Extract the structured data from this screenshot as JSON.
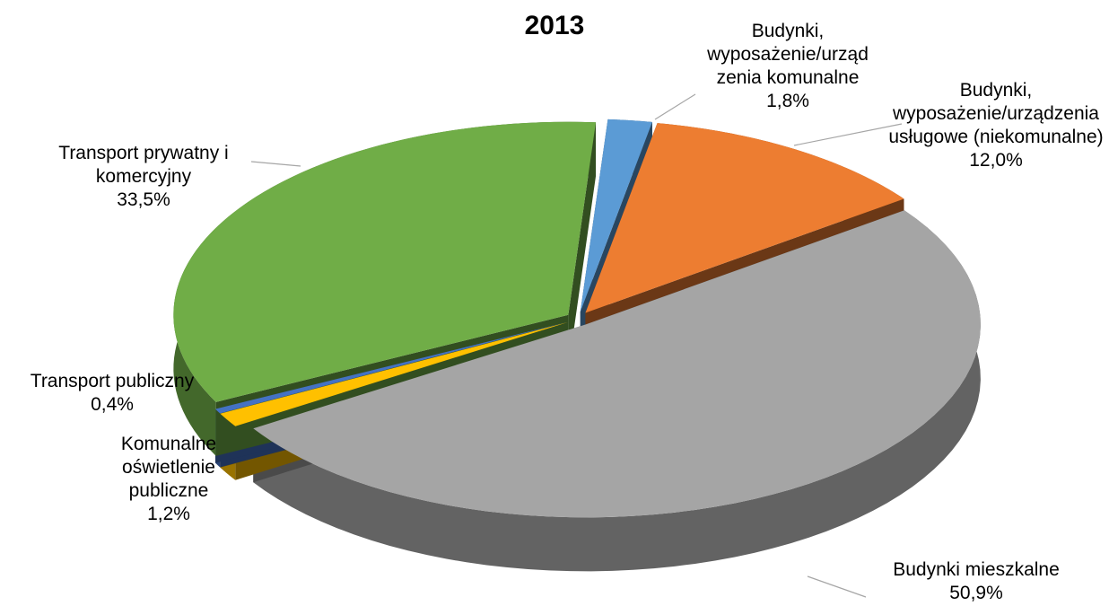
{
  "chart_data": {
    "type": "pie",
    "title": "2013",
    "categories": [
      "Budynki, wyposażenie/urządzenia komunalne",
      "Budynki, wyposażenie/urządzenia usługowe (niekomunalne)",
      "Budynki mieszkalne",
      "Komunalne oświetlenie publiczne",
      "Transport publiczny",
      "Transport prywatny i komercyjny"
    ],
    "values": [
      1.8,
      12.0,
      50.9,
      1.2,
      0.4,
      33.5
    ],
    "value_labels": [
      "1,8%",
      "12,0%",
      "50,9%",
      "1,2%",
      "0,4%",
      "33,5%"
    ],
    "colors": [
      "#5b9bd5",
      "#ed7d31",
      "#a5a5a5",
      "#ffc000",
      "#4472c4",
      "#70ad47"
    ]
  }
}
